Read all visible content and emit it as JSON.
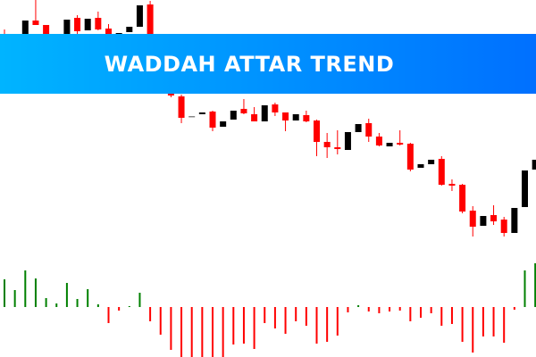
{
  "banner": {
    "title": "WADDAH ATTAR TREND",
    "gradient_start": "#00b4ff",
    "gradient_end": "#0070ff"
  },
  "chart_data": [
    {
      "type": "candlestick",
      "title": "",
      "grid": false,
      "colors": {
        "bullish": "#000000",
        "bearish": "#ff0000",
        "neutral": "#888888"
      },
      "fields": [
        "open",
        "high",
        "low",
        "close"
      ],
      "candles": [
        [
          362,
          367,
          352,
          354
        ],
        [
          345,
          360,
          342,
          358
        ],
        [
          355,
          377,
          353,
          377
        ],
        [
          377,
          400,
          372,
          372
        ],
        [
          372,
          372,
          348,
          350
        ],
        [
          340,
          355,
          340,
          355
        ],
        [
          355,
          378,
          355,
          378
        ],
        [
          380,
          383,
          362,
          365
        ],
        [
          366,
          379,
          366,
          379
        ],
        [
          380,
          387,
          366,
          367
        ],
        [
          368,
          373,
          353,
          355
        ],
        [
          360,
          363,
          360,
          363
        ],
        [
          364,
          370,
          364,
          370
        ],
        [
          370,
          394,
          370,
          394
        ],
        [
          395,
          399,
          338,
          340
        ],
        [
          340,
          340,
          310,
          310
        ],
        [
          310,
          312,
          291,
          293
        ],
        [
          292,
          294,
          262,
          268
        ],
        [
          270,
          270,
          270,
          270
        ],
        [
          272,
          274,
          272,
          274
        ],
        [
          275,
          276,
          253,
          257
        ],
        [
          258,
          264,
          258,
          264
        ],
        [
          266,
          276,
          266,
          276
        ],
        [
          278,
          289,
          272,
          273
        ],
        [
          272,
          280,
          264,
          264
        ],
        [
          264,
          282,
          264,
          282
        ],
        [
          283,
          285,
          270,
          274
        ],
        [
          274,
          274,
          253,
          265
        ],
        [
          265,
          272,
          265,
          272
        ],
        [
          271,
          276,
          263,
          264
        ],
        [
          265,
          266,
          225,
          241
        ],
        [
          241,
          251,
          223,
          235
        ],
        [
          235,
          254,
          227,
          233
        ],
        [
          232,
          252,
          232,
          252
        ],
        [
          252,
          261,
          252,
          261
        ],
        [
          262,
          267,
          241,
          247
        ],
        [
          247,
          251,
          236,
          237
        ],
        [
          236,
          240,
          236,
          240
        ],
        [
          240,
          254,
          237,
          238
        ],
        [
          239,
          240,
          208,
          210
        ],
        [
          212,
          216,
          212,
          216
        ],
        [
          216,
          221,
          216,
          221
        ],
        [
          222,
          225,
          192,
          193
        ],
        [
          194,
          199,
          186,
          192
        ],
        [
          193,
          194,
          161,
          163
        ],
        [
          164,
          169,
          135,
          146
        ],
        [
          147,
          158,
          147,
          158
        ],
        [
          159,
          170,
          148,
          152
        ],
        [
          154,
          157,
          135,
          139
        ],
        [
          139,
          167,
          139,
          167
        ],
        [
          168,
          209,
          168,
          209
        ],
        [
          210,
          221,
          210,
          221
        ]
      ]
    },
    {
      "type": "bar",
      "title": "",
      "grid": false,
      "colors": {
        "positive": "#008000",
        "negative": "#ff0000"
      },
      "values": [
        31,
        19,
        41,
        32,
        10,
        4,
        27,
        9,
        20,
        3,
        -18,
        -4,
        1,
        16,
        -16,
        -31,
        -48,
        -56,
        -56,
        -56,
        -56,
        -56,
        -42,
        -41,
        -47,
        -18,
        -24,
        -30,
        -16,
        -21,
        -41,
        -39,
        -32,
        -6,
        2,
        -5,
        -7,
        -5,
        -4,
        -16,
        -12,
        -7,
        -21,
        -19,
        -39,
        -51,
        -33,
        -33,
        -40,
        -3,
        41,
        49
      ]
    }
  ]
}
